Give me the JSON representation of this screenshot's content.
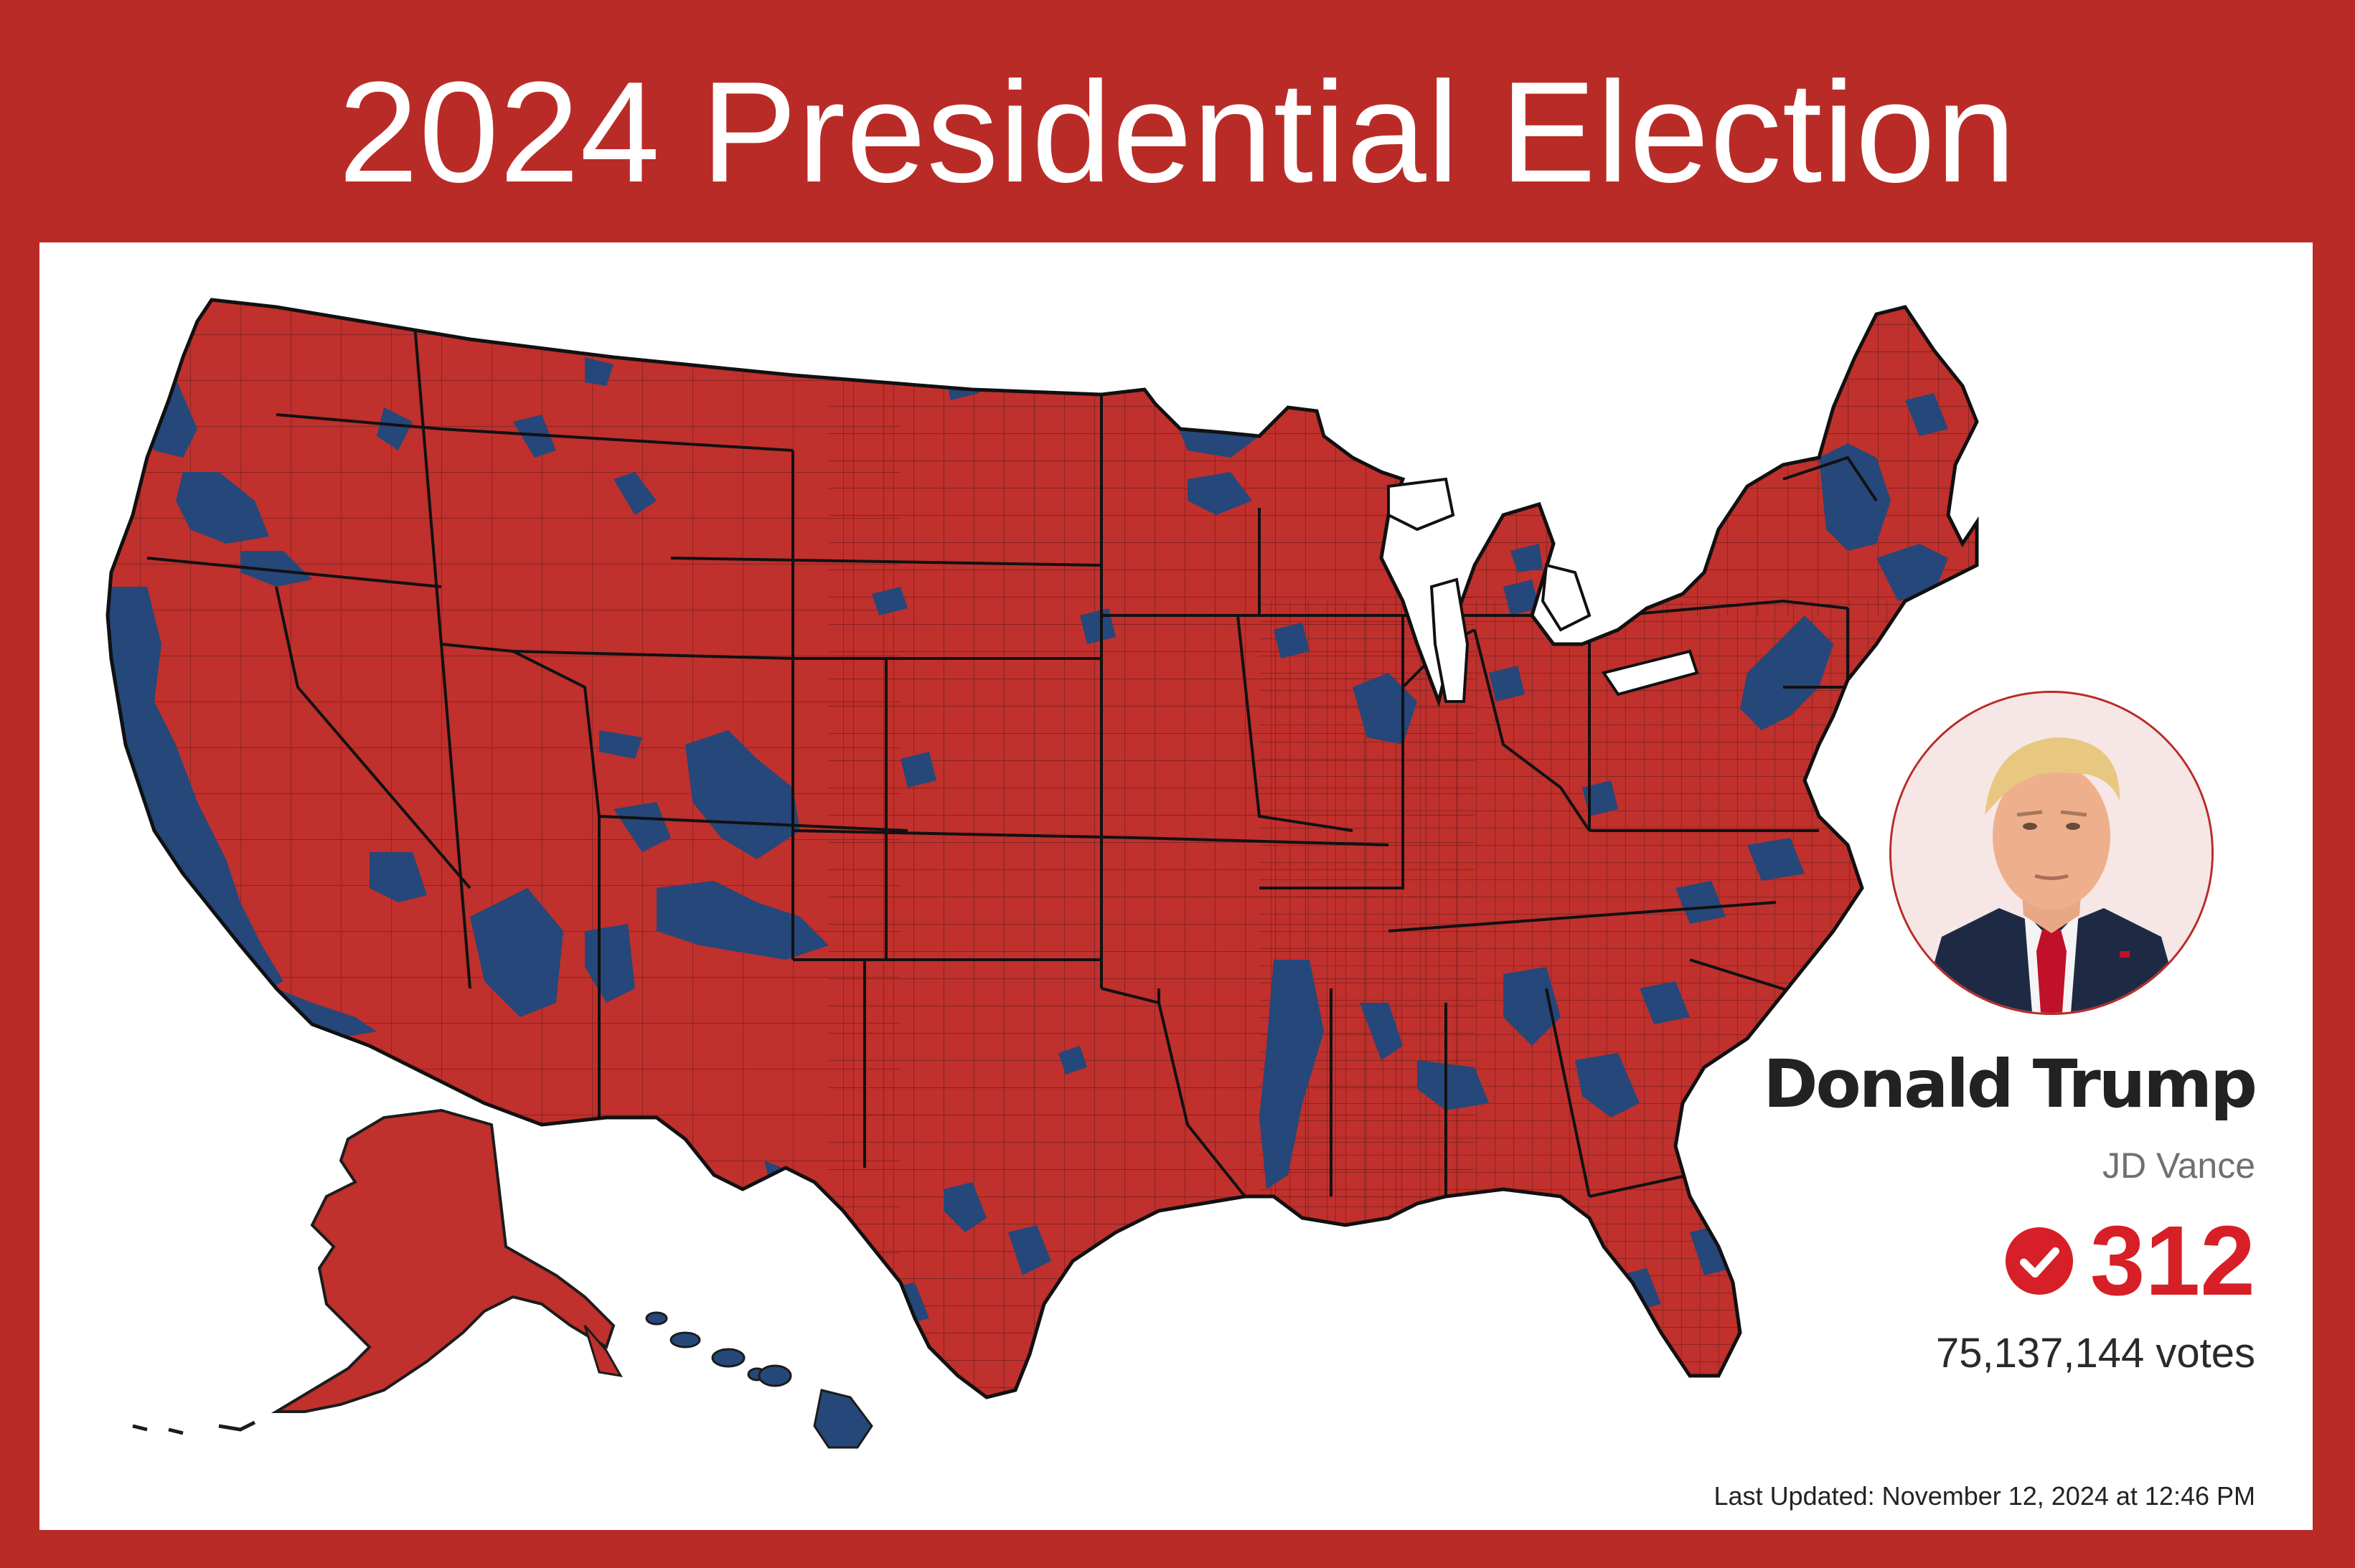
{
  "header": {
    "title": "2024 Presidential Election"
  },
  "map": {
    "republican_color": "#c0302c",
    "democratic_color": "#25477a",
    "border_color": "#1c1c1c"
  },
  "candidate": {
    "name": "Donald Trump",
    "running_mate": "JD Vance",
    "electoral_votes": "312",
    "popular_votes": "75,137,144 votes",
    "accent_color": "#d61f26"
  },
  "footer": {
    "last_updated": "Last Updated: November 12, 2024 at 12:46 PM"
  }
}
